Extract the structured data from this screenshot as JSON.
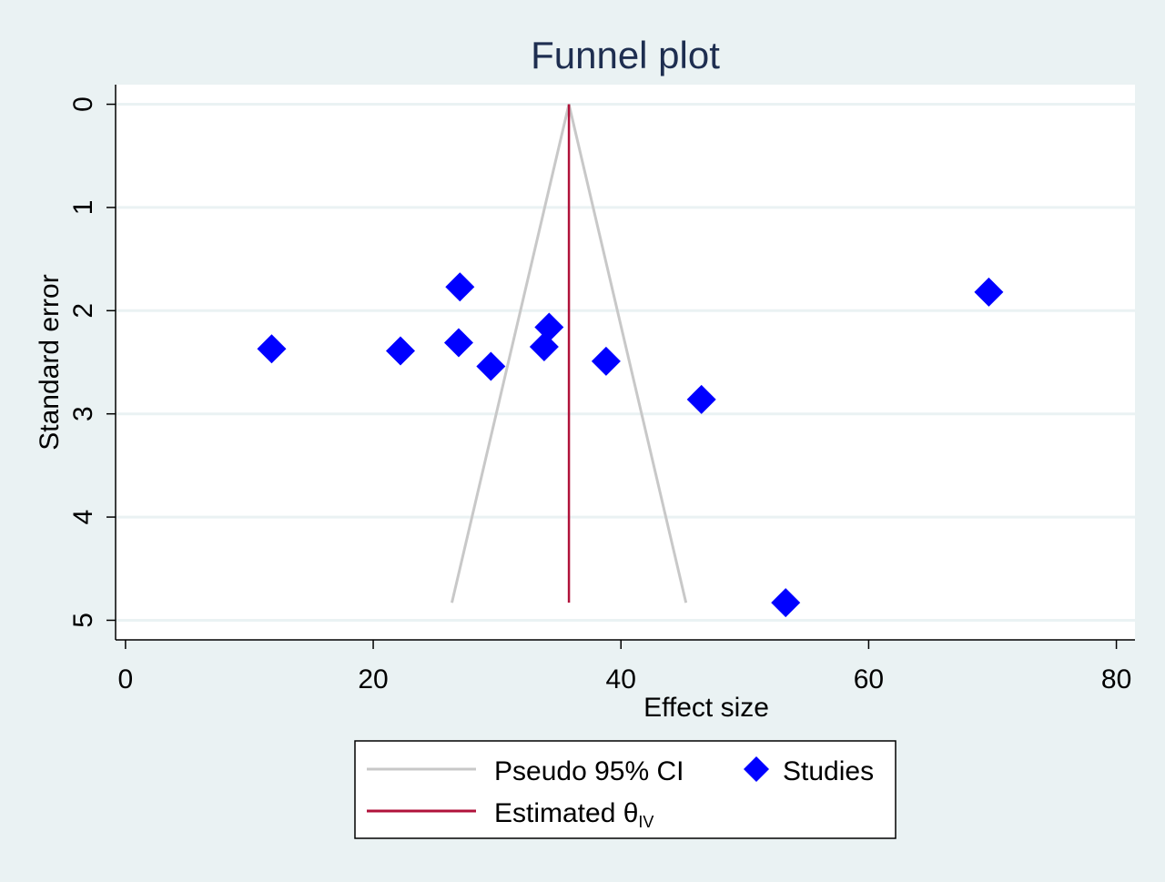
{
  "chart_data": {
    "type": "scatter",
    "title": "Funnel plot",
    "xlabel": "Effect size",
    "ylabel": "Standard error",
    "xlim": [
      -0.8,
      81.5
    ],
    "ylim": [
      5.19,
      -0.19
    ],
    "y_reversed": true,
    "x_ticks": [
      "0",
      "20",
      "40",
      "60",
      "80"
    ],
    "x_tick_values": [
      0,
      20,
      40,
      60,
      80
    ],
    "y_ticks": [
      "0",
      "1",
      "2",
      "3",
      "4",
      "5"
    ],
    "y_tick_values": [
      0,
      1,
      2,
      3,
      4,
      5
    ],
    "grid": "horizontal",
    "studies": {
      "name": "Studies",
      "color": "#0000ff",
      "points": [
        {
          "x": 11.8,
          "y": 2.37
        },
        {
          "x": 22.2,
          "y": 2.39
        },
        {
          "x": 27.0,
          "y": 1.77
        },
        {
          "x": 26.9,
          "y": 2.31
        },
        {
          "x": 29.5,
          "y": 2.54
        },
        {
          "x": 33.8,
          "y": 2.35
        },
        {
          "x": 34.2,
          "y": 2.16
        },
        {
          "x": 38.8,
          "y": 2.49
        },
        {
          "x": 46.5,
          "y": 2.86
        },
        {
          "x": 53.3,
          "y": 4.83
        },
        {
          "x": 69.7,
          "y": 1.82
        }
      ]
    },
    "estimate": {
      "name": "Estimated θIV",
      "name_main": "Estimated θ",
      "name_sub": "IV",
      "color": "#b0123a",
      "x": 35.8,
      "y_range": [
        0,
        4.83
      ]
    },
    "pseudo_ci": {
      "name": "Pseudo 95% CI",
      "color": "#c8c8c8",
      "apex": {
        "x": 35.8,
        "y": 0
      },
      "left_base": {
        "x": 26.35,
        "y": 4.83
      },
      "right_base": {
        "x": 45.25,
        "y": 4.83
      }
    },
    "legend_placement": "bottom-center"
  }
}
